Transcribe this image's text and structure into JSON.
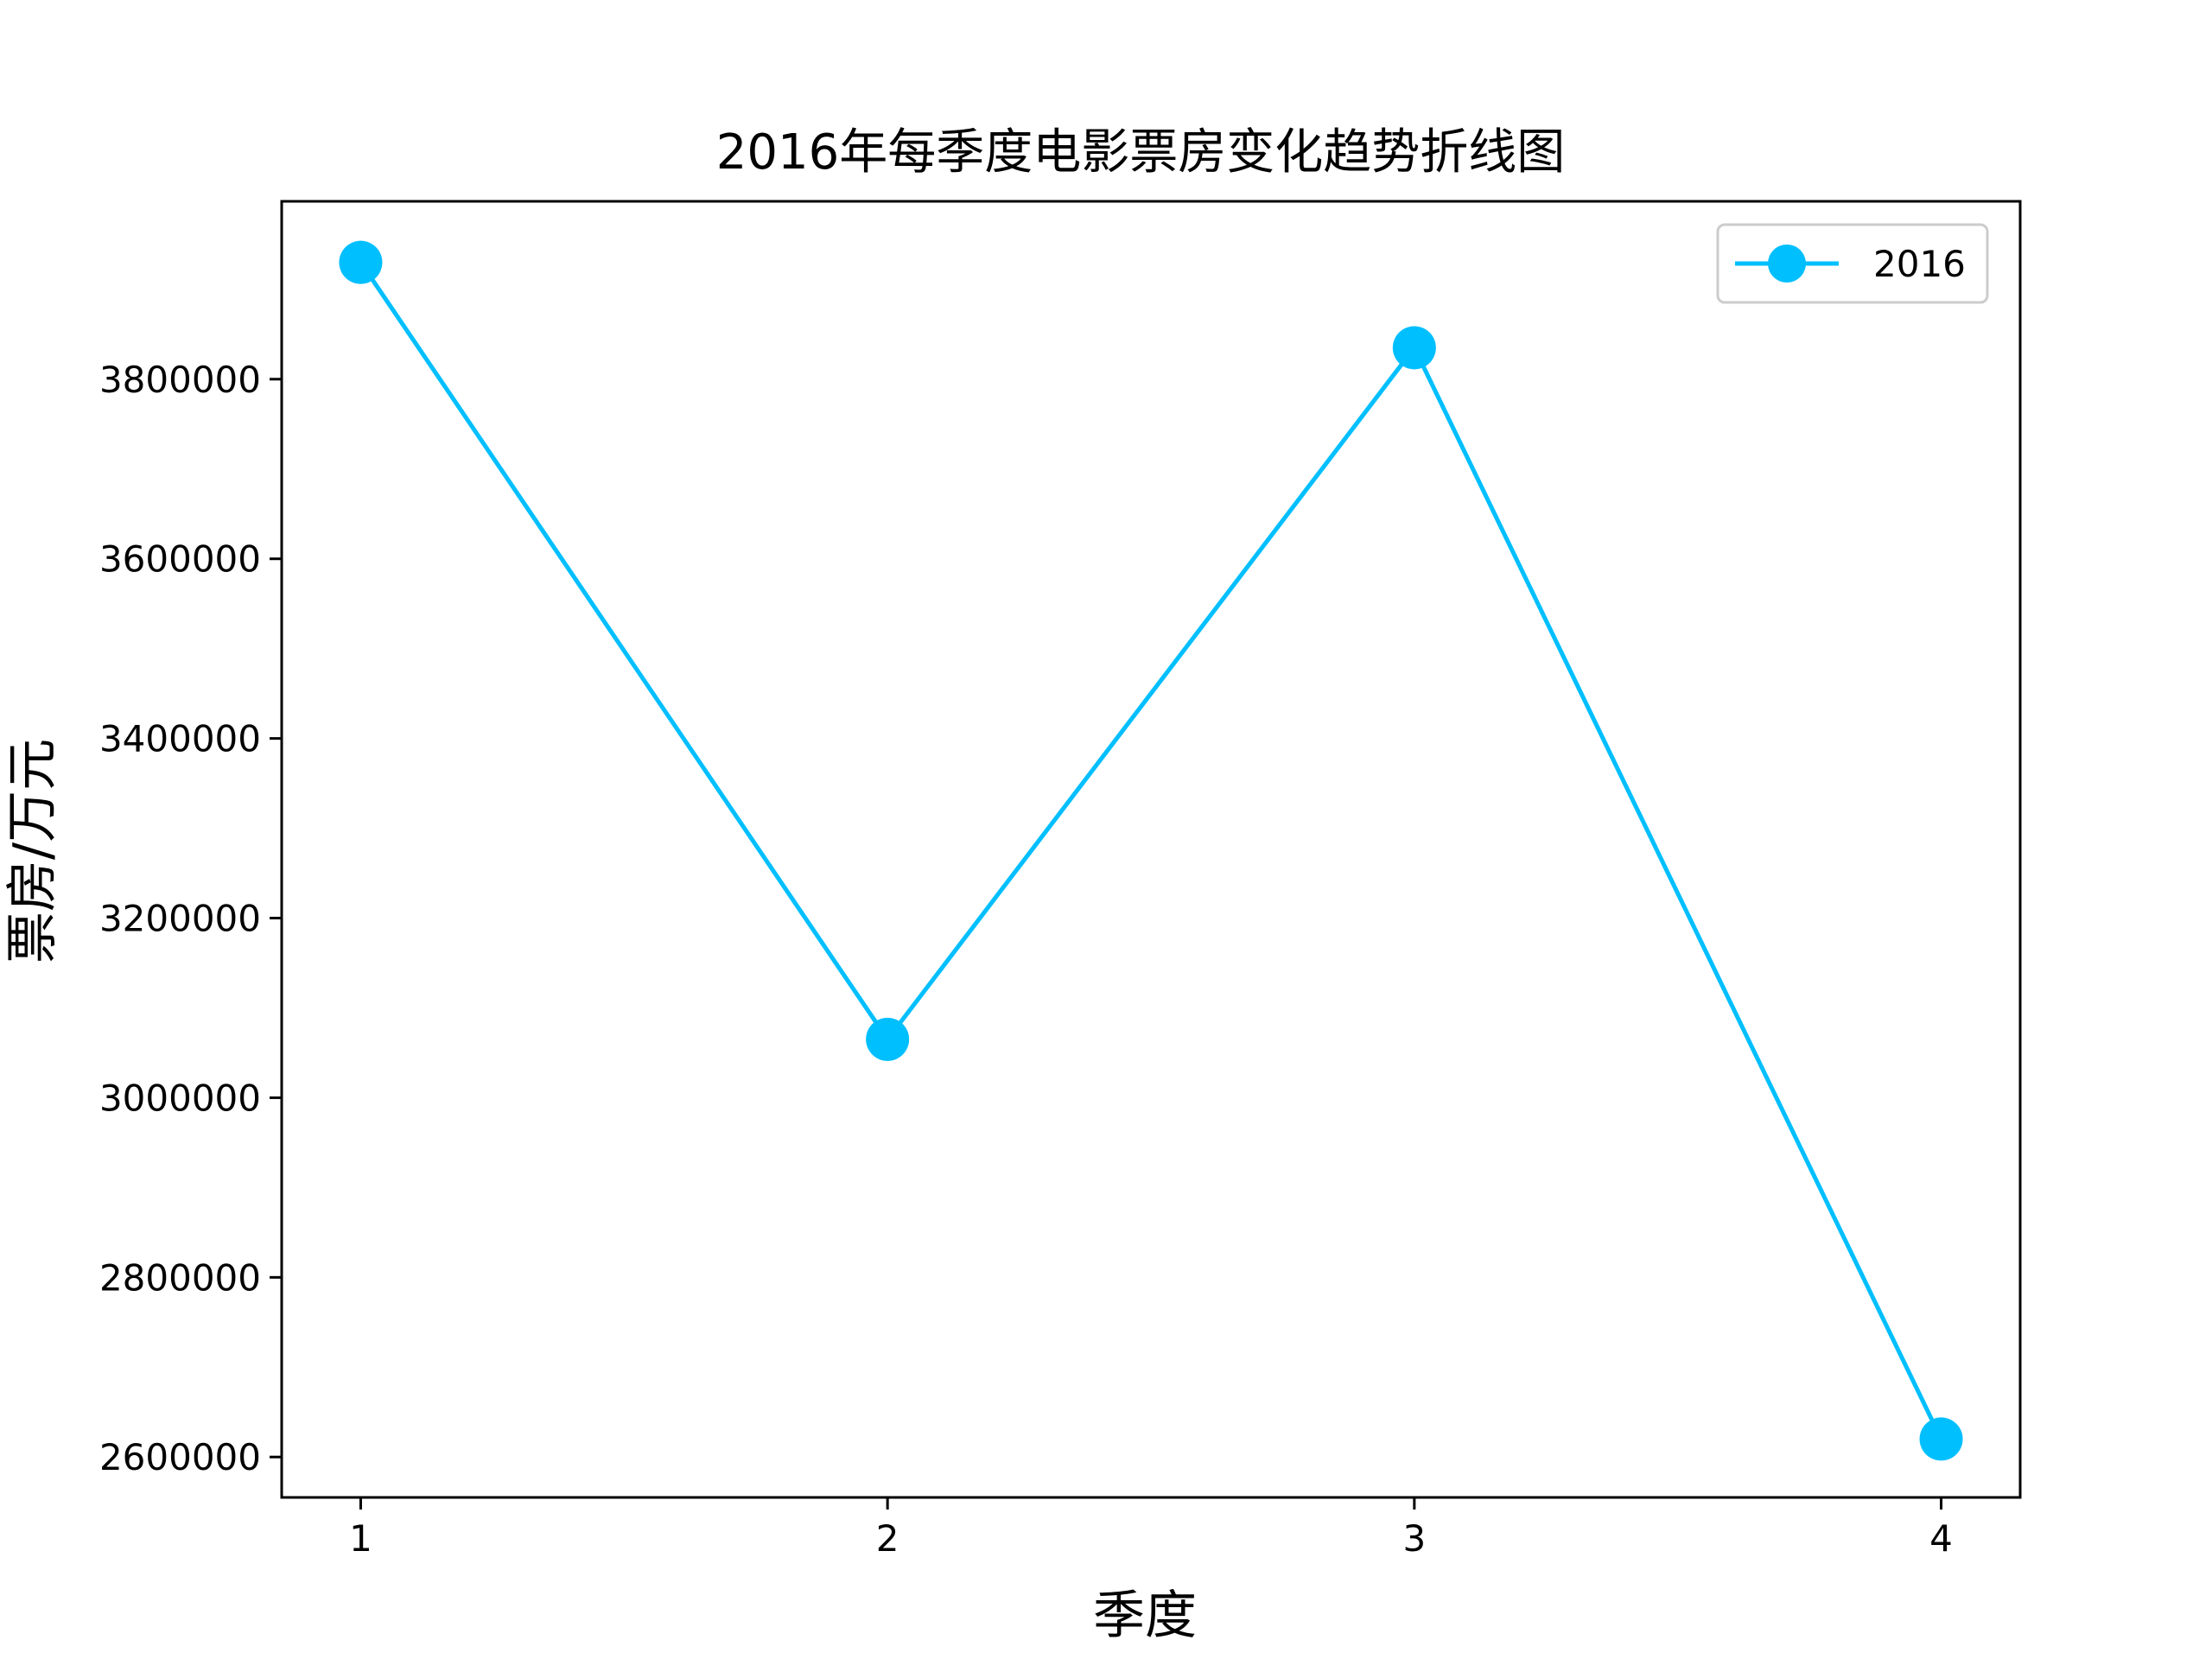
{
  "chart_data": {
    "type": "line",
    "title": "2016年每季度电影票房变化趋势折线图",
    "xlabel": "季度",
    "ylabel": "票房/万元",
    "x": [
      1,
      2,
      3,
      4
    ],
    "x_ticks": [
      "1",
      "2",
      "3",
      "4"
    ],
    "xlim": [
      0.85,
      4.15
    ],
    "ylim": [
      2555000,
      3998000
    ],
    "y_ticks": [
      2600000,
      2800000,
      3000000,
      3200000,
      3400000,
      3600000,
      3800000
    ],
    "y_tick_labels": [
      "2600000",
      "2800000",
      "3000000",
      "3200000",
      "3400000",
      "3600000",
      "3800000"
    ],
    "series": [
      {
        "name": "2016",
        "values": [
          3930000,
          3065000,
          3835000,
          2620000
        ],
        "color": "#00BFFF",
        "marker": "circle"
      }
    ],
    "grid": false,
    "legend_position": "top-right"
  }
}
